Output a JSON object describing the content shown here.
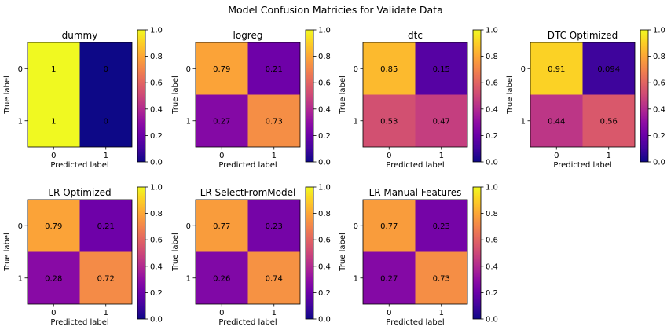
{
  "figure": {
    "title": "Model Confusion Matricies for Validate Data"
  },
  "colorscale": {
    "name": "plasma",
    "ticks": [
      "0.0",
      "0.2",
      "0.4",
      "0.6",
      "0.8",
      "1.0"
    ],
    "range": [
      0,
      1
    ]
  },
  "chart_data": [
    {
      "type": "heatmap",
      "title": "dummy",
      "xlabel": "Predicted label",
      "ylabel": "True label",
      "x_ticks": [
        "0",
        "1"
      ],
      "y_ticks": [
        "0",
        "1"
      ],
      "values": [
        [
          1,
          0
        ],
        [
          1,
          0
        ]
      ],
      "labels": [
        [
          "1",
          "0"
        ],
        [
          "1",
          "0"
        ]
      ]
    },
    {
      "type": "heatmap",
      "title": "logreg",
      "xlabel": "Predicted label",
      "ylabel": "True label",
      "x_ticks": [
        "0",
        "1"
      ],
      "y_ticks": [
        "0",
        "1"
      ],
      "values": [
        [
          0.79,
          0.21
        ],
        [
          0.27,
          0.73
        ]
      ],
      "labels": [
        [
          "0.79",
          "0.21"
        ],
        [
          "0.27",
          "0.73"
        ]
      ]
    },
    {
      "type": "heatmap",
      "title": "dtc",
      "xlabel": "Predicted label",
      "ylabel": "True label",
      "x_ticks": [
        "0",
        "1"
      ],
      "y_ticks": [
        "0",
        "1"
      ],
      "values": [
        [
          0.85,
          0.15
        ],
        [
          0.53,
          0.47
        ]
      ],
      "labels": [
        [
          "0.85",
          "0.15"
        ],
        [
          "0.53",
          "0.47"
        ]
      ]
    },
    {
      "type": "heatmap",
      "title": "DTC Optimized",
      "xlabel": "Predicted label",
      "ylabel": "True label",
      "x_ticks": [
        "0",
        "1"
      ],
      "y_ticks": [
        "0",
        "1"
      ],
      "values": [
        [
          0.91,
          0.094
        ],
        [
          0.44,
          0.56
        ]
      ],
      "labels": [
        [
          "0.91",
          "0.094"
        ],
        [
          "0.44",
          "0.56"
        ]
      ]
    },
    {
      "type": "heatmap",
      "title": "LR Optimized",
      "xlabel": "Predicted label",
      "ylabel": "True label",
      "x_ticks": [
        "0",
        "1"
      ],
      "y_ticks": [
        "0",
        "1"
      ],
      "values": [
        [
          0.79,
          0.21
        ],
        [
          0.28,
          0.72
        ]
      ],
      "labels": [
        [
          "0.79",
          "0.21"
        ],
        [
          "0.28",
          "0.72"
        ]
      ]
    },
    {
      "type": "heatmap",
      "title": "LR SelectFromModel",
      "xlabel": "Predicted label",
      "ylabel": "True label",
      "x_ticks": [
        "0",
        "1"
      ],
      "y_ticks": [
        "0",
        "1"
      ],
      "values": [
        [
          0.77,
          0.23
        ],
        [
          0.26,
          0.74
        ]
      ],
      "labels": [
        [
          "0.77",
          "0.23"
        ],
        [
          "0.26",
          "0.74"
        ]
      ]
    },
    {
      "type": "heatmap",
      "title": "LR Manual Features",
      "xlabel": "Predicted label",
      "ylabel": "True label",
      "x_ticks": [
        "0",
        "1"
      ],
      "y_ticks": [
        "0",
        "1"
      ],
      "values": [
        [
          0.77,
          0.23
        ],
        [
          0.27,
          0.73
        ]
      ],
      "labels": [
        [
          "0.77",
          "0.23"
        ],
        [
          "0.27",
          "0.73"
        ]
      ]
    }
  ]
}
